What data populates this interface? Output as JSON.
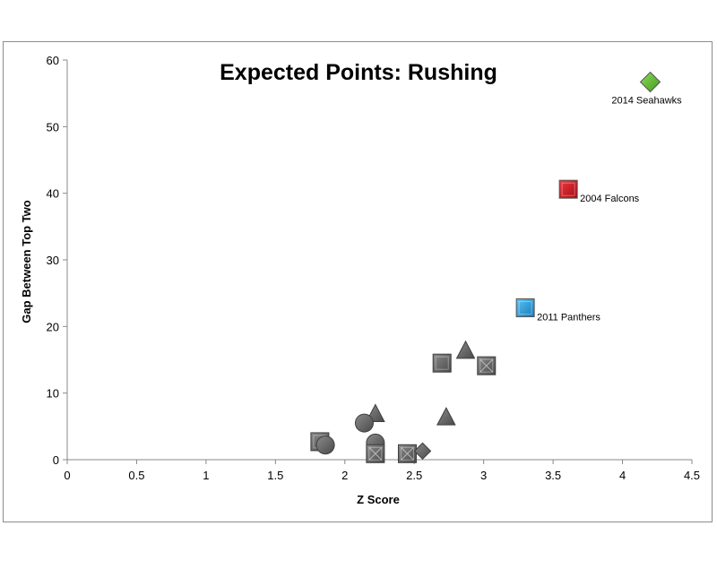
{
  "chart_data": {
    "type": "scatter",
    "title": "Expected Points: Rushing",
    "xlabel": "Z Score",
    "ylabel": "Gap Between Top Two",
    "xlim": [
      0,
      4.5
    ],
    "ylim": [
      0,
      60
    ],
    "xticks": [
      "0",
      "0.5",
      "1",
      "1.5",
      "2",
      "2.5",
      "3",
      "3.5",
      "4",
      "4.5"
    ],
    "yticks": [
      "0",
      "10",
      "20",
      "30",
      "40",
      "50",
      "60"
    ],
    "grid": false,
    "legend": "none",
    "colors": {
      "gray": "#606060",
      "seahawks": "#5cb82e",
      "falcons": "#d0121b",
      "panthers": "#25a0e0"
    },
    "points": [
      {
        "x": 4.2,
        "y": 56.7,
        "shape": "diamond",
        "color": "seahawks",
        "label": "2014 Seahawks"
      },
      {
        "x": 3.61,
        "y": 40.6,
        "shape": "square",
        "color": "falcons",
        "label": "2004 Falcons"
      },
      {
        "x": 3.3,
        "y": 22.8,
        "shape": "square",
        "color": "panthers",
        "label": "2011 Panthers"
      },
      {
        "x": 2.87,
        "y": 16.3,
        "shape": "triangle",
        "color": "gray",
        "label": ""
      },
      {
        "x": 2.7,
        "y": 14.5,
        "shape": "square",
        "color": "gray",
        "label": ""
      },
      {
        "x": 3.02,
        "y": 14.1,
        "shape": "square-x",
        "color": "gray",
        "label": ""
      },
      {
        "x": 2.22,
        "y": 6.8,
        "shape": "triangle",
        "color": "gray",
        "label": ""
      },
      {
        "x": 2.73,
        "y": 6.3,
        "shape": "triangle",
        "color": "gray",
        "label": ""
      },
      {
        "x": 2.14,
        "y": 5.5,
        "shape": "circle",
        "color": "gray",
        "label": ""
      },
      {
        "x": 1.82,
        "y": 2.7,
        "shape": "square",
        "color": "gray",
        "label": ""
      },
      {
        "x": 1.86,
        "y": 2.2,
        "shape": "circle",
        "color": "gray",
        "label": ""
      },
      {
        "x": 2.22,
        "y": 2.5,
        "shape": "circle",
        "color": "gray",
        "label": ""
      },
      {
        "x": 2.22,
        "y": 0.9,
        "shape": "square-x",
        "color": "gray",
        "label": ""
      },
      {
        "x": 2.45,
        "y": 0.9,
        "shape": "square-x",
        "color": "gray",
        "label": ""
      },
      {
        "x": 2.56,
        "y": 1.3,
        "shape": "diamond",
        "color": "gray",
        "label": ""
      }
    ]
  }
}
